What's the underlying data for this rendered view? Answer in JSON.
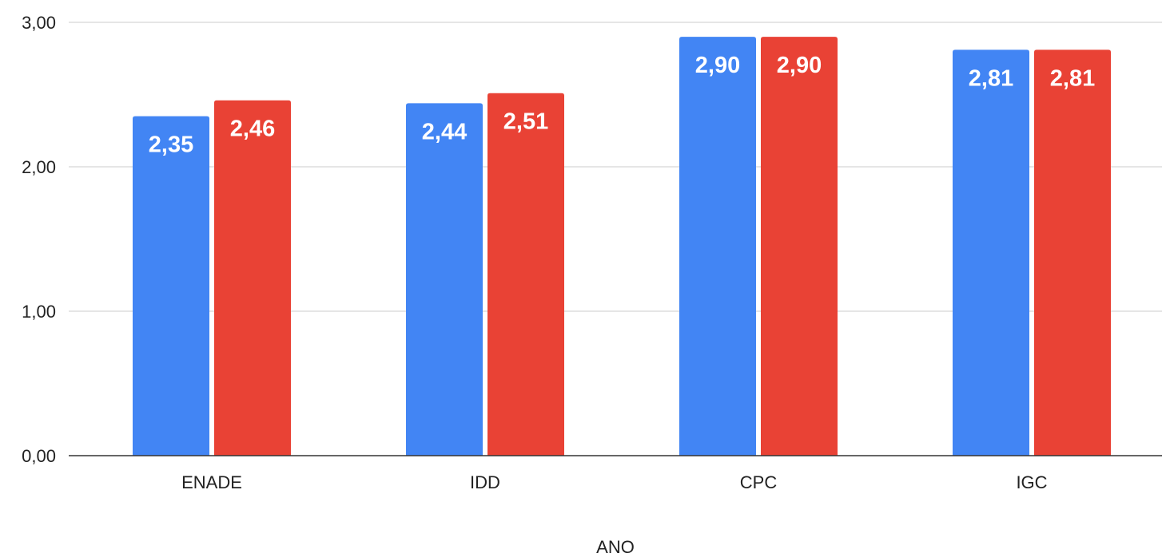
{
  "chart_data": {
    "type": "bar",
    "categories": [
      "ENADE",
      "IDD",
      "CPC",
      "IGC"
    ],
    "series": [
      {
        "color": "#4285f4",
        "values": [
          2.35,
          2.44,
          2.9,
          2.81
        ],
        "labels": [
          "2,35",
          "2,44",
          "2,90",
          "2,81"
        ]
      },
      {
        "color": "#e94235",
        "values": [
          2.46,
          2.51,
          2.9,
          2.81
        ],
        "labels": [
          "2,46",
          "2,51",
          "2,90",
          "2,81"
        ]
      }
    ],
    "xlabel": "ANO",
    "ylabel": "",
    "ylim": [
      0,
      3
    ],
    "yticks": [
      0,
      1,
      2,
      3
    ],
    "ytick_labels": [
      "0,00",
      "1,00",
      "2,00",
      "3,00"
    ],
    "grid": true,
    "legend": "none"
  }
}
